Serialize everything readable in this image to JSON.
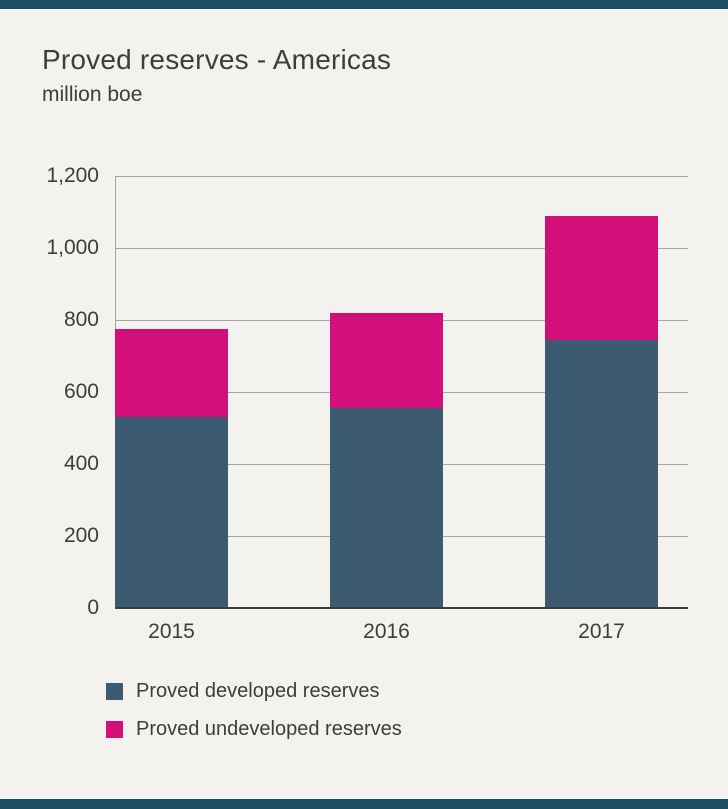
{
  "chart_data": {
    "type": "bar",
    "stacked": true,
    "title": "Proved reserves - Americas",
    "subtitle": "million boe",
    "ylabel": "million boe",
    "xlabel": "",
    "categories": [
      "2015",
      "2016",
      "2017"
    ],
    "series": [
      {
        "key": "developed",
        "name": "Proved developed reserves",
        "color": "#3c5a70",
        "values": [
          530,
          555,
          745
        ]
      },
      {
        "key": "undeveloped",
        "name": "Proved undeveloped reserves",
        "color": "#d30f7b",
        "values": [
          245,
          265,
          345
        ]
      }
    ],
    "totals": [
      775,
      820,
      1090
    ],
    "ylim": [
      0,
      1200
    ],
    "yticks": [
      0,
      200,
      400,
      600,
      800,
      1000,
      1200
    ],
    "ytick_labels": [
      "0",
      "200",
      "400",
      "600",
      "800",
      "1,000",
      "1,200"
    ],
    "grid": true,
    "legend_position": "bottom-left"
  },
  "colors": {
    "background": "#f3f2ee",
    "border_strip": "#1d4d61",
    "text": "#3d3d3c",
    "gridline": "#a5a5a1",
    "baseline": "#3d3d3c"
  }
}
